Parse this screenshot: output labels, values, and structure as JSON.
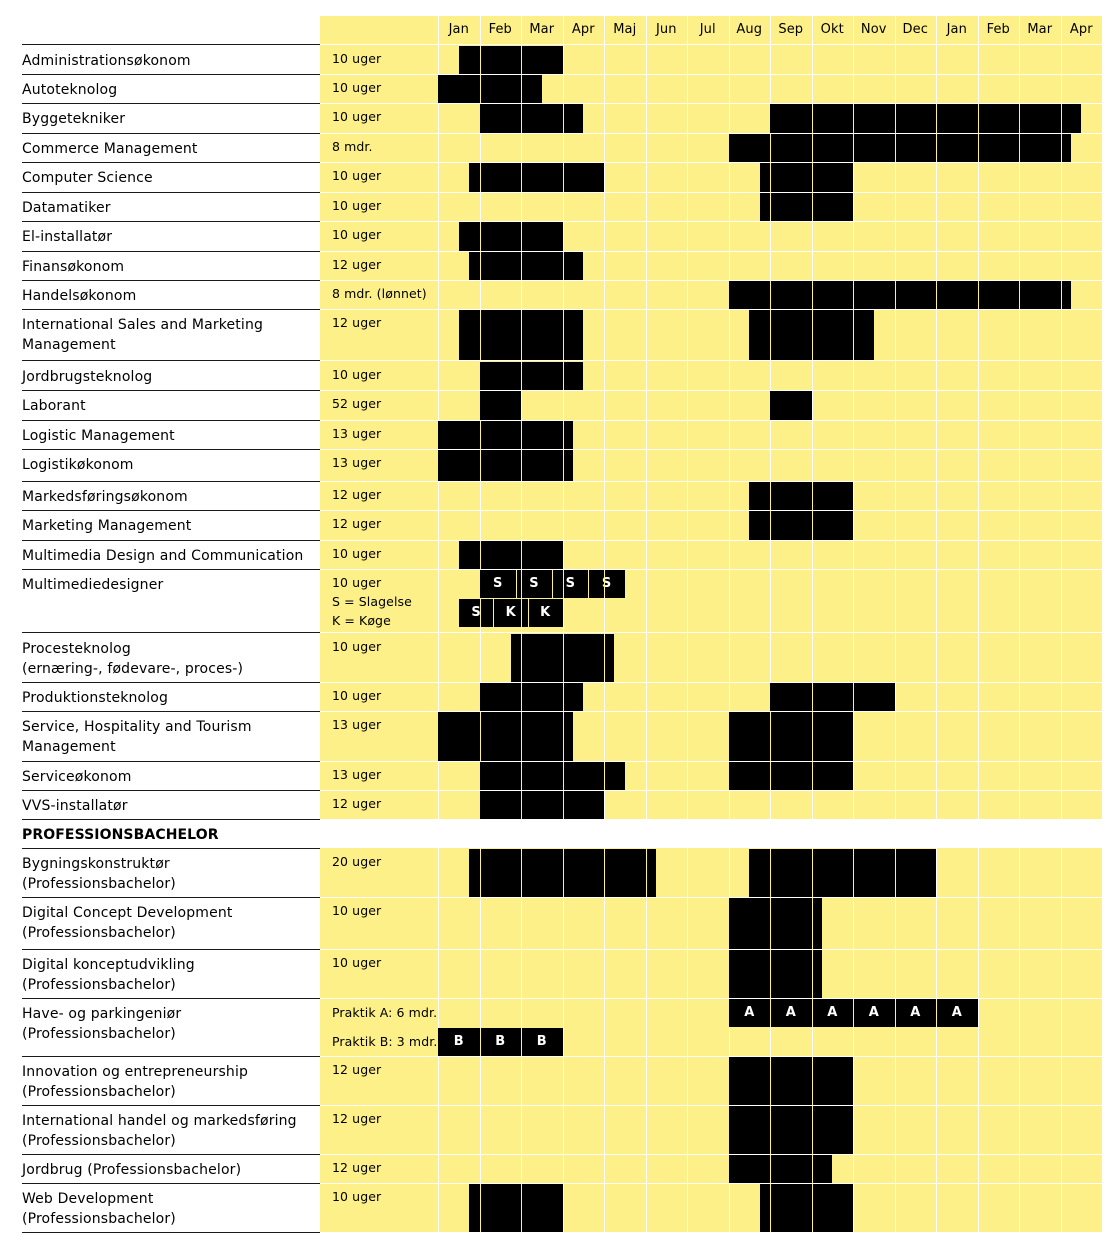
{
  "chart_data": {
    "type": "table",
    "months": [
      "Jan",
      "Feb",
      "Mar",
      "Apr",
      "Maj",
      "Jun",
      "Jul",
      "Aug",
      "Sep",
      "Okt",
      "Nov",
      "Dec",
      "Jan",
      "Feb",
      "Mar",
      "Apr"
    ],
    "sections": [
      {
        "title": "",
        "rows": [
          {
            "name": [
              "Administrationsøkonom"
            ],
            "durations": [
              "10 uger"
            ],
            "bars": [
              [
                0.5,
                3.0
              ]
            ]
          },
          {
            "name": [
              "Autoteknolog"
            ],
            "durations": [
              "10 uger"
            ],
            "bars": [
              [
                0.0,
                2.5
              ]
            ]
          },
          {
            "name": [
              "Byggetekniker"
            ],
            "durations": [
              "10 uger"
            ],
            "bars": [
              [
                1.0,
                3.5
              ],
              [
                8.0,
                15.5
              ]
            ]
          },
          {
            "name": [
              "Commerce Management"
            ],
            "durations": [
              "8 mdr."
            ],
            "bars": [
              [
                7.0,
                15.25
              ]
            ]
          },
          {
            "name": [
              "Computer Science"
            ],
            "durations": [
              "10 uger"
            ],
            "bars": [
              [
                0.75,
                4.0
              ],
              [
                7.75,
                10.0
              ]
            ]
          },
          {
            "name": [
              "Datamatiker"
            ],
            "durations": [
              "10 uger"
            ],
            "bars": [
              [
                7.75,
                10.0
              ]
            ]
          },
          {
            "name": [
              "El-installatør"
            ],
            "durations": [
              "10 uger"
            ],
            "bars": [
              [
                0.5,
                3.0
              ]
            ]
          },
          {
            "name": [
              "Finansøkonom"
            ],
            "durations": [
              "12 uger"
            ],
            "bars": [
              [
                0.75,
                3.5
              ]
            ]
          },
          {
            "name": [
              "Handelsøkonom"
            ],
            "durations": [
              "8 mdr. (lønnet)"
            ],
            "bars": [
              [
                7.0,
                15.25
              ]
            ]
          },
          {
            "name": [
              "International Sales and Marketing",
              "Management"
            ],
            "durations": [
              "12 uger"
            ],
            "bars": [
              [
                0.5,
                3.5
              ],
              [
                7.5,
                10.5
              ]
            ]
          },
          {
            "name": [
              "Jordbrugsteknolog"
            ],
            "durations": [
              "10 uger"
            ],
            "bars": [
              [
                1.0,
                3.5
              ]
            ]
          },
          {
            "name": [
              "Laborant"
            ],
            "durations": [
              "52 uger"
            ],
            "bars": [
              [
                1.0,
                2.0
              ],
              [
                8.0,
                9.0
              ]
            ]
          },
          {
            "name": [
              "Logistic Management"
            ],
            "durations": [
              "13 uger"
            ],
            "bars": [
              [
                0.0,
                3.25
              ]
            ]
          },
          {
            "name": [
              "Logistikøkonom"
            ],
            "durations": [
              "13 uger"
            ],
            "bars": [
              [
                0.0,
                3.25
              ]
            ]
          },
          {
            "name": [
              "Markedsføringsøkonom"
            ],
            "durations": [
              "12 uger"
            ],
            "bars": [
              [
                7.5,
                10.0
              ]
            ]
          },
          {
            "name": [
              "Marketing Management"
            ],
            "durations": [
              "12 uger"
            ],
            "bars": [
              [
                7.5,
                10.0
              ]
            ]
          },
          {
            "name": [
              "Multimedia Design and Communication"
            ],
            "durations": [
              "10 uger"
            ],
            "bars": [
              [
                0.5,
                3.0
              ]
            ]
          },
          {
            "name": [
              "Multimediedesigner"
            ],
            "durations": [
              "10 uger",
              "S = Slagelse",
              "K = Køge"
            ],
            "sub_bars": [
              {
                "start": 1.0,
                "end": 4.5,
                "labels": [
                  "S",
                  "S",
                  "S",
                  "S"
                ]
              },
              {
                "start": 0.5,
                "end": 3.0,
                "labels": [
                  "S",
                  "K",
                  "K"
                ]
              }
            ]
          },
          {
            "name": [
              "Procesteknolog",
              "(ernæring-, fødevare-, proces-)"
            ],
            "durations": [
              "10 uger"
            ],
            "bars": [
              [
                1.75,
                4.25
              ]
            ]
          },
          {
            "name": [
              "Produktionsteknolog"
            ],
            "durations": [
              "10 uger"
            ],
            "bars": [
              [
                1.0,
                3.5
              ],
              [
                8.0,
                11.0
              ]
            ]
          },
          {
            "name": [
              "Service, Hospitality and Tourism",
              "Management"
            ],
            "durations": [
              "13 uger"
            ],
            "bars": [
              [
                0.0,
                3.25
              ],
              [
                7.0,
                10.0
              ]
            ]
          },
          {
            "name": [
              "Serviceøkonom"
            ],
            "durations": [
              "13 uger"
            ],
            "bars": [
              [
                1.0,
                4.5
              ],
              [
                7.0,
                10.0
              ]
            ]
          },
          {
            "name": [
              "VVS-installatør"
            ],
            "durations": [
              "12 uger"
            ],
            "bars": [
              [
                1.0,
                4.0
              ]
            ]
          }
        ]
      },
      {
        "title": "PROFESSIONSBACHELOR",
        "rows": [
          {
            "name": [
              "Bygningskonstruktør",
              "(Professionsbachelor)"
            ],
            "durations": [
              "20 uger"
            ],
            "bars": [
              [
                0.75,
                5.25
              ],
              [
                7.5,
                12.0
              ]
            ]
          },
          {
            "name": [
              "Digital Concept Development",
              "(Professionsbachelor)"
            ],
            "durations": [
              "10 uger"
            ],
            "bars": [
              [
                7.0,
                9.25
              ]
            ]
          },
          {
            "name": [
              "Digital konceptudvikling",
              "(Professionsbachelor)"
            ],
            "durations": [
              "10 uger"
            ],
            "bars": [
              [
                7.0,
                9.25
              ]
            ]
          },
          {
            "name": [
              "Have- og parkingeniør",
              "(Professionsbachelor)"
            ],
            "durations": [
              "Praktik A: 6 mdr.",
              "Praktik B: 3 mdr."
            ],
            "sub_bars": [
              {
                "start": 7.0,
                "end": 13.0,
                "labels": [
                  "A",
                  "A",
                  "A",
                  "A",
                  "A",
                  "A"
                ]
              },
              {
                "start": 0.0,
                "end": 3.0,
                "labels": [
                  "B",
                  "B",
                  "B"
                ]
              }
            ]
          },
          {
            "name": [
              "Innovation og entrepreneurship",
              "(Professionsbachelor)"
            ],
            "durations": [
              "12 uger"
            ],
            "bars": [
              [
                7.0,
                10.0
              ]
            ]
          },
          {
            "name": [
              "International handel og markedsføring",
              "(Professionsbachelor)"
            ],
            "durations": [
              "12 uger"
            ],
            "bars": [
              [
                7.0,
                10.0
              ]
            ]
          },
          {
            "name": [
              "Jordbrug (Professionsbachelor)"
            ],
            "durations": [
              "12 uger"
            ],
            "bars": [
              [
                7.0,
                9.5
              ]
            ]
          },
          {
            "name": [
              "Web Development",
              "(Professionsbachelor)"
            ],
            "durations": [
              "10 uger"
            ],
            "bars": [
              [
                0.75,
                3.0
              ],
              [
                7.75,
                10.0
              ]
            ]
          }
        ]
      }
    ]
  },
  "colors": {
    "background": "#ffffff",
    "grid_fill": "#fdf089",
    "bar": "#000000",
    "bar_label": "#ffffff",
    "row_divider": "#1a1a1a"
  }
}
